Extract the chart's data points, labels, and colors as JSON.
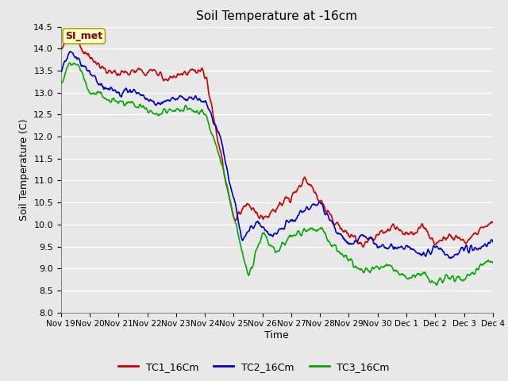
{
  "title": "Soil Temperature at -16cm",
  "xlabel": "Time",
  "ylabel": "Soil Temperature (C)",
  "ylim": [
    8.0,
    14.5
  ],
  "yticks": [
    8.0,
    8.5,
    9.0,
    9.5,
    10.0,
    10.5,
    11.0,
    11.5,
    12.0,
    12.5,
    13.0,
    13.5,
    14.0,
    14.5
  ],
  "fig_facecolor": "#e8e8e8",
  "plot_bg_color": "#e8e8e8",
  "grid_color": "#ffffff",
  "legend_label": "SI_met",
  "series": {
    "TC1_16Cm": {
      "color": "#cc0000",
      "label": "TC1_16Cm"
    },
    "TC2_16Cm": {
      "color": "#0000cc",
      "label": "TC2_16Cm"
    },
    "TC3_16Cm": {
      "color": "#00aa00",
      "label": "TC3_16Cm"
    }
  },
  "xtick_labels": [
    "Nov 19",
    "Nov 20",
    "Nov 21",
    "Nov 22",
    "Nov 23",
    "Nov 24",
    "Nov 25",
    "Nov 26",
    "Nov 27",
    "Nov 28",
    "Nov 29",
    "Nov 30",
    "Dec 1",
    "Dec 2",
    "Dec 3",
    "Dec 4"
  ],
  "num_points": 1440
}
